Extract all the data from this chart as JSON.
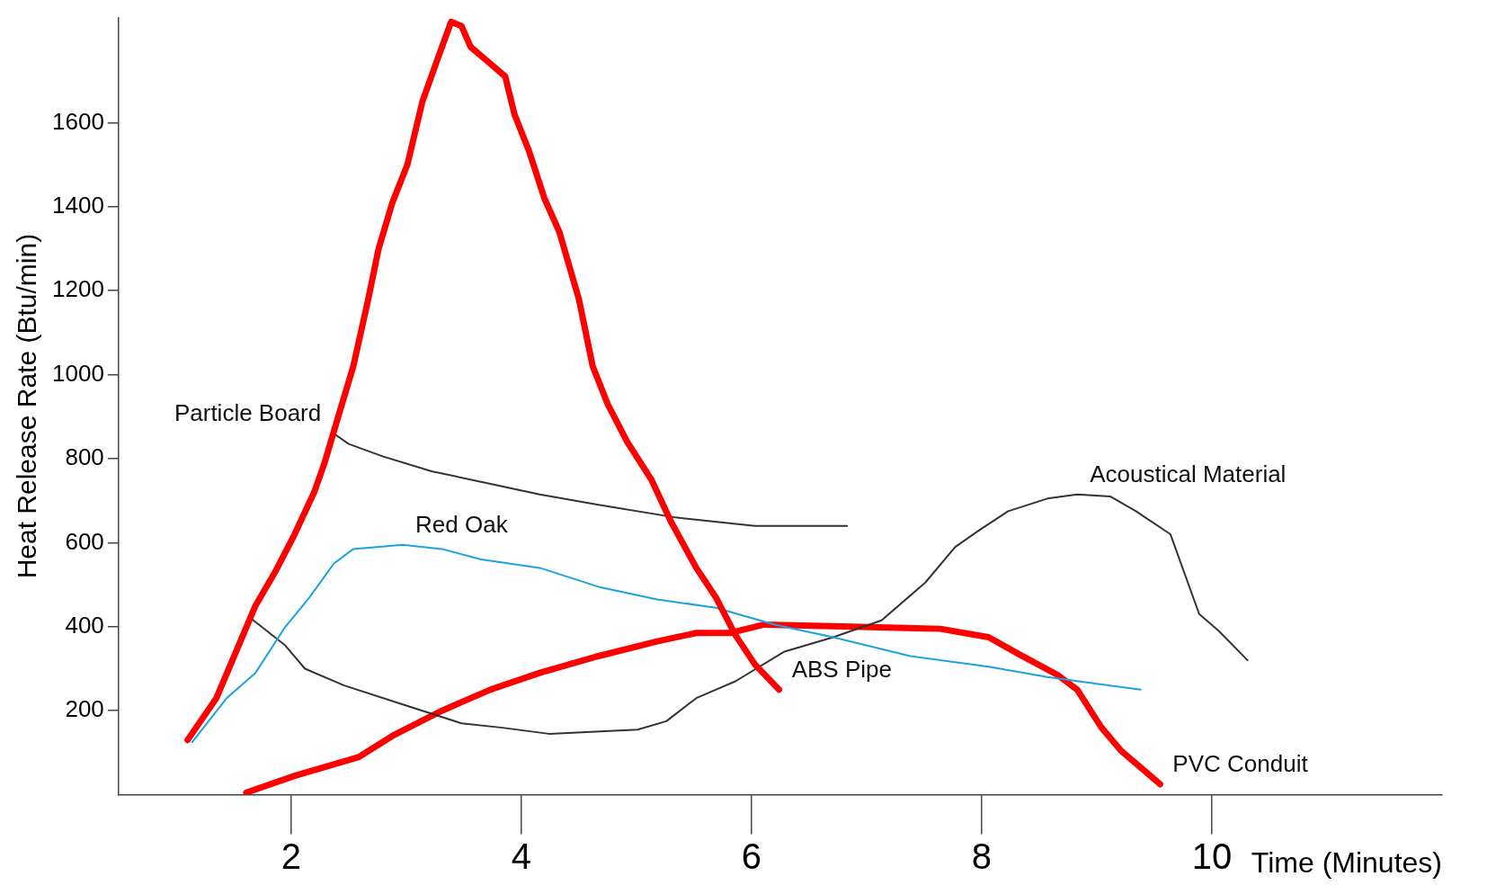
{
  "chart_data": {
    "type": "line",
    "xlabel": "Time (Minutes)",
    "ylabel": "Heat Release Rate (Btu/min)",
    "xlim": [
      0.5,
      12
    ],
    "xticks": [
      2,
      4,
      6,
      8,
      10
    ],
    "ylim": [
      0,
      1850
    ],
    "yticks": [
      200,
      400,
      600,
      800,
      1000,
      1200,
      1400,
      1600
    ],
    "grid": false,
    "legend": false,
    "marker": "none",
    "line_style": "solid",
    "series": [
      {
        "name": "ABS Pipe",
        "color": "#ff0000",
        "x": [
          1.1,
          1.35,
          1.52,
          1.69,
          1.86,
          2.03,
          2.2,
          2.29,
          2.42,
          2.54,
          2.67,
          2.76,
          2.88,
          3.01,
          3.14,
          3.27,
          3.39,
          3.48,
          3.56,
          3.69,
          3.86,
          3.94,
          4.07,
          4.2,
          4.33,
          4.5,
          4.62,
          4.75,
          4.92,
          5.13,
          5.3,
          5.52,
          5.69,
          5.86,
          6.03,
          6.24
        ],
        "values": [
          130,
          230,
          340,
          450,
          530,
          620,
          720,
          790,
          910,
          1020,
          1180,
          1300,
          1410,
          1500,
          1650,
          1750,
          1840,
          1830,
          1780,
          1750,
          1710,
          1620,
          1530,
          1420,
          1340,
          1180,
          1020,
          930,
          840,
          750,
          650,
          540,
          470,
          380,
          310,
          250
        ]
      },
      {
        "name": "Particle Board",
        "color": "#333333",
        "x": [
          2.37,
          2.5,
          2.8,
          3.22,
          3.65,
          4.16,
          4.67,
          5.34,
          6.03,
          6.83
        ],
        "values": [
          860,
          835,
          805,
          770,
          745,
          715,
          690,
          660,
          640,
          640
        ]
      },
      {
        "name": "Red Oak",
        "color": "#1aa3e0",
        "x": [
          1.14,
          1.44,
          1.69,
          1.95,
          2.16,
          2.37,
          2.54,
          2.97,
          3.31,
          3.65,
          4.16,
          4.67,
          5.18,
          5.69,
          6.2,
          6.71,
          7.38,
          8.06,
          8.57,
          9.38
        ],
        "values": [
          125,
          230,
          290,
          400,
          470,
          550,
          585,
          595,
          585,
          560,
          540,
          495,
          465,
          445,
          405,
          375,
          330,
          305,
          280,
          250
        ]
      },
      {
        "name": "Acoustical Material",
        "color": "#333333",
        "x": [
          1.65,
          1.95,
          2.12,
          2.46,
          2.97,
          3.48,
          3.82,
          4.24,
          5.01,
          5.26,
          5.52,
          5.86,
          6.28,
          6.71,
          7.13,
          7.51,
          7.77,
          7.98,
          8.23,
          8.57,
          8.83,
          9.12,
          9.34,
          9.64,
          9.89,
          10.06,
          10.31
        ],
        "values": [
          420,
          355,
          300,
          260,
          215,
          170,
          160,
          145,
          155,
          175,
          230,
          270,
          340,
          375,
          415,
          505,
          590,
          630,
          675,
          705,
          715,
          710,
          675,
          620,
          430,
          390,
          320
        ]
      },
      {
        "name": "PVC Conduit",
        "color": "#ff0000",
        "x": [
          1.61,
          2.03,
          2.59,
          2.88,
          3.31,
          3.73,
          4.16,
          4.67,
          5.18,
          5.52,
          5.81,
          6.11,
          6.87,
          7.64,
          8.06,
          8.32,
          8.66,
          8.83,
          9.04,
          9.21,
          9.55
        ],
        "values": [
          5,
          45,
          90,
          140,
          200,
          250,
          290,
          330,
          365,
          385,
          385,
          405,
          400,
          395,
          375,
          335,
          285,
          250,
          160,
          105,
          25
        ]
      }
    ]
  }
}
